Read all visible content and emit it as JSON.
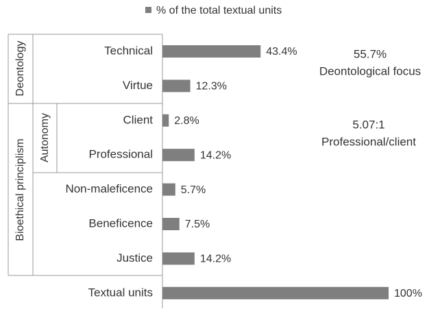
{
  "chart_data": {
    "type": "bar",
    "orientation": "horizontal",
    "categories": [
      "Technical",
      "Virtue",
      "Client",
      "Professional",
      "Non-maleficence",
      "Beneficence",
      "Justice",
      "Textual units"
    ],
    "series": [
      {
        "name": "% of the total textual units",
        "color": "#7f7f7f",
        "values": [
          43.4,
          12.3,
          2.8,
          14.2,
          5.7,
          7.5,
          14.2,
          100
        ],
        "value_labels": [
          "43.4%",
          "12.3%",
          "2.8%",
          "14.2%",
          "5.7%",
          "7.5%",
          "14.2%",
          "100%"
        ]
      }
    ],
    "groups": [
      "Deontology",
      "Bioethical principlism",
      "Autonomy"
    ],
    "annotations": [
      "55.7%",
      "Deontological focus",
      "5.07:1",
      "Professional/client"
    ],
    "legend": "top"
  }
}
